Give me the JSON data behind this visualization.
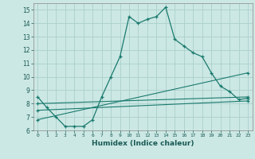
{
  "xlabel": "Humidex (Indice chaleur)",
  "ylabel": "",
  "bg_color": "#cce8e4",
  "grid_color": "#aad0cc",
  "line_color": "#1a7a6e",
  "xlim": [
    -0.5,
    23.5
  ],
  "ylim": [
    6,
    15.5
  ],
  "xticks": [
    0,
    1,
    2,
    3,
    4,
    5,
    6,
    7,
    8,
    9,
    10,
    11,
    12,
    13,
    14,
    15,
    16,
    17,
    18,
    19,
    20,
    21,
    22,
    23
  ],
  "yticks": [
    6,
    7,
    8,
    9,
    10,
    11,
    12,
    13,
    14,
    15
  ],
  "line1_x": [
    0,
    1,
    2,
    3,
    4,
    5,
    6,
    7,
    8,
    9,
    10,
    11,
    12,
    13,
    14,
    15,
    16,
    17,
    18,
    19,
    20,
    21,
    22,
    23
  ],
  "line1_y": [
    8.5,
    7.7,
    7.0,
    6.3,
    6.3,
    6.3,
    6.8,
    8.5,
    10.0,
    11.5,
    14.5,
    14.0,
    14.3,
    14.5,
    15.2,
    12.8,
    12.3,
    11.8,
    11.5,
    10.3,
    9.3,
    8.9,
    8.3,
    8.4
  ],
  "line2_x": [
    0,
    23
  ],
  "line2_y": [
    8.0,
    8.5
  ],
  "line3_x": [
    0,
    23
  ],
  "line3_y": [
    7.5,
    8.2
  ],
  "line4_x": [
    0,
    23
  ],
  "line4_y": [
    6.8,
    10.3
  ]
}
